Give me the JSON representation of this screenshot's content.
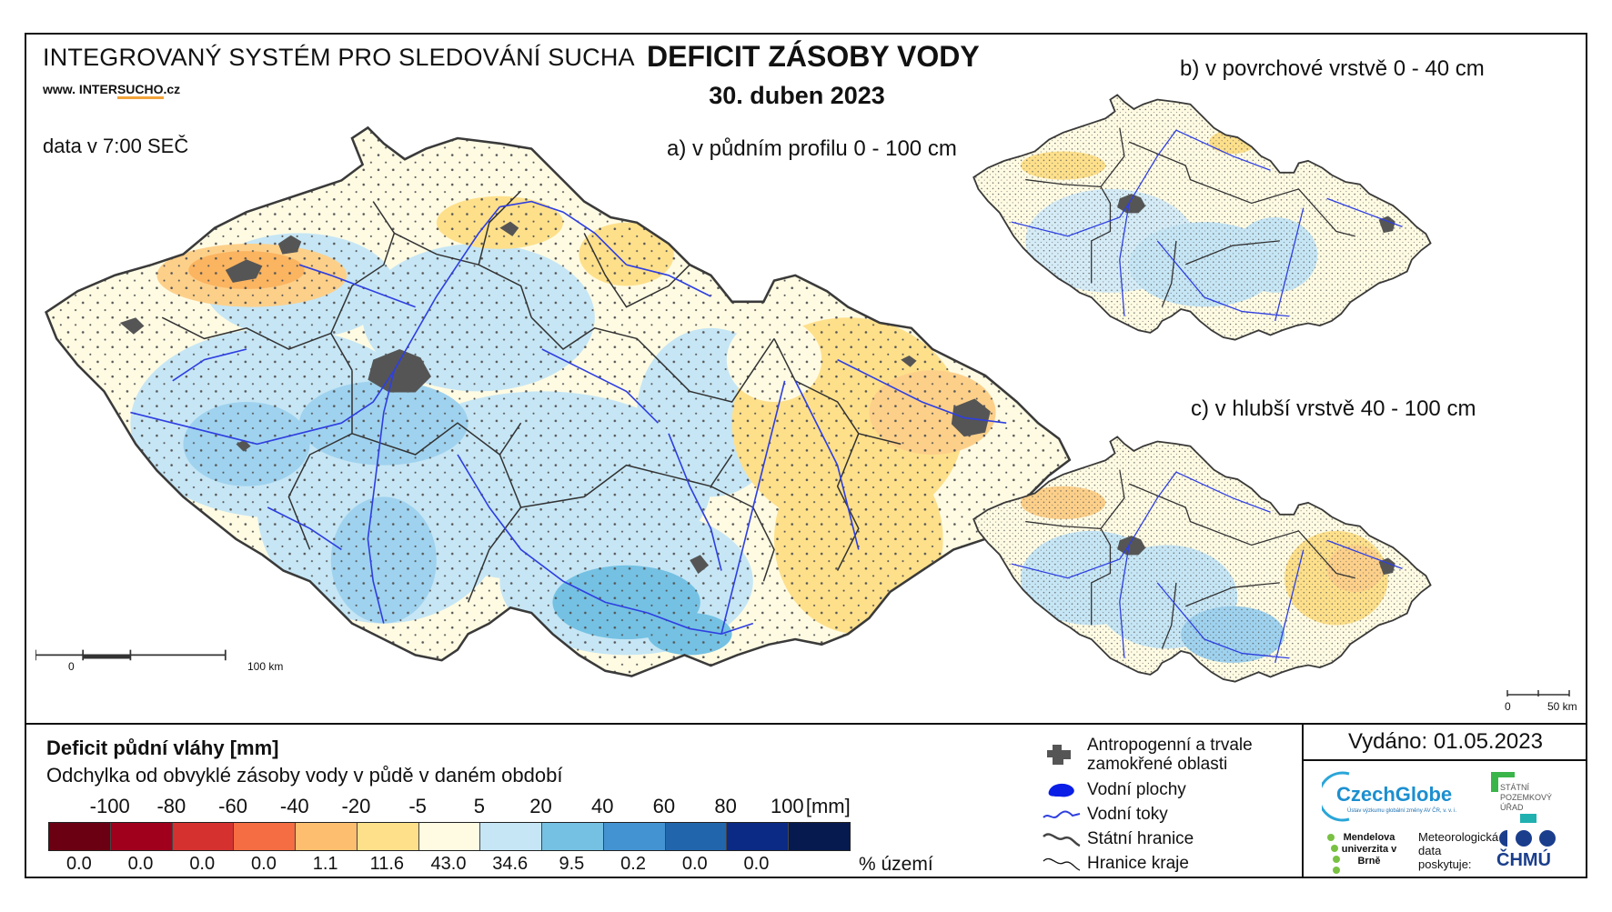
{
  "header": {
    "system": "INTEGROVANÝ SYSTÉM PRO SLEDOVÁNÍ SUCHA",
    "web_prefix": "www. INTER",
    "web_u": "SUCHO",
    "web_suffix": ".cz",
    "data_time": "data v 7:00 SEČ",
    "main_title": "DEFICIT ZÁSOBY VODY",
    "date": "30. duben 2023"
  },
  "maps": {
    "a_title": "a) v půdním profilu 0 - 100 cm",
    "b_title": "b) v povrchové vrstvě 0 - 40 cm",
    "c_title": "c) v hlubší vrstvě 40 - 100 cm",
    "scale_a_start": "0",
    "scale_a_end": "100 km",
    "scale_c_start": "0",
    "scale_c_end": "50 km"
  },
  "legend": {
    "title": "Deficit půdní vláhy  [mm]",
    "subtitle": "Odchylka od obvyklé zásoby vody v půdě v daném období",
    "unit": "[mm]",
    "ticks": [
      "-100",
      "-80",
      "-60",
      "-40",
      "-20",
      "-5",
      "5",
      "20",
      "40",
      "60",
      "80",
      "100"
    ],
    "colors": [
      "#6b0012",
      "#a0001c",
      "#d5322f",
      "#f46d43",
      "#fdbf6f",
      "#fee08b",
      "#fffbe3",
      "#c6e6f5",
      "#74c1e3",
      "#4393d3",
      "#2166ac",
      "#0b2a85",
      "#061a4f"
    ],
    "percents": [
      "0.0",
      "0.0",
      "0.0",
      "0.0",
      "1.1",
      "11.6",
      "43.0",
      "34.6",
      "9.5",
      "0.2",
      "0.0",
      "0.0"
    ],
    "percent_label": "% území"
  },
  "symbols": {
    "urban": "Antropogenní a trvale zamokřené oblasti",
    "water": "Vodní plochy",
    "rivers": "Vodní toky",
    "border": "Státní hranice",
    "regions": "Hranice kraje"
  },
  "footer": {
    "issued": "Vydáno: 01.05.2023",
    "czechglobe": "CzechGlobe",
    "czechglobe_sub": "Ústav výzkumu globální změny AV ČR, v. v. i.",
    "spu": "STÁTNÍ POZEMKOVÝ ÚŘAD",
    "mendel": "Mendelova univerzita v Brně",
    "met_data": "Meteorologická data poskytuje:",
    "chmu": "ČHMÚ"
  }
}
